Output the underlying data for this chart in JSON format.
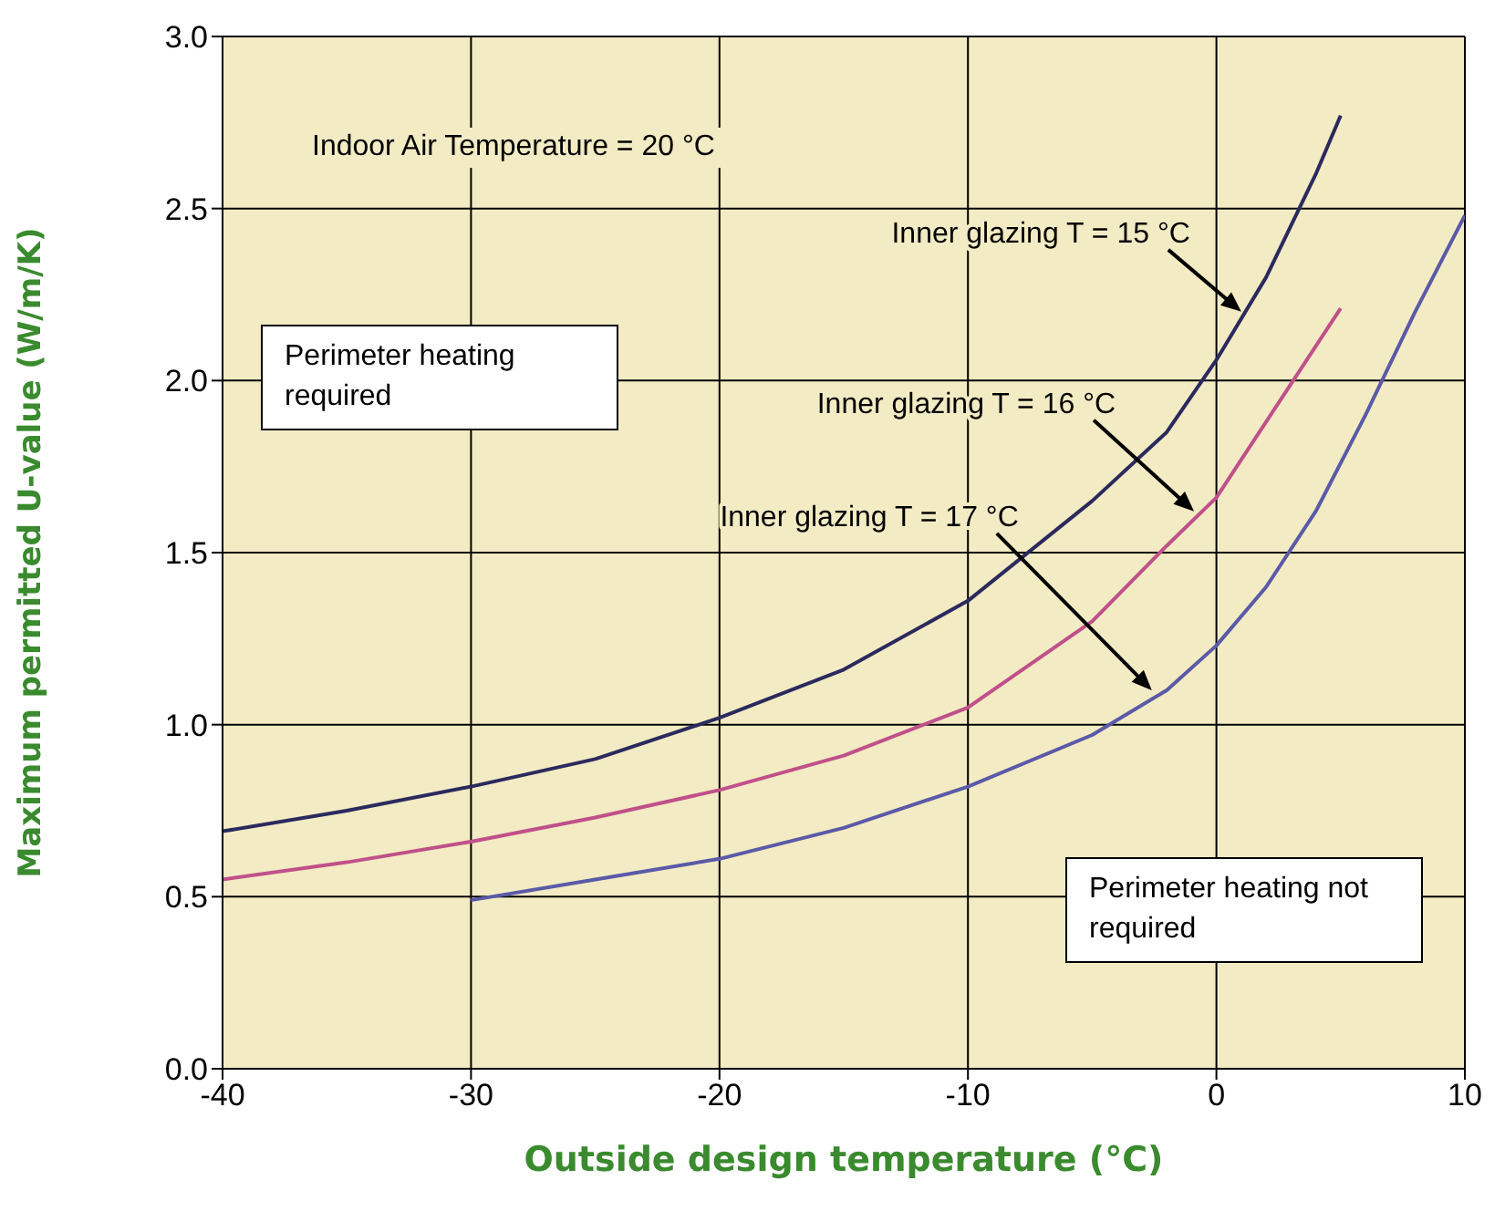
{
  "chart_data": {
    "type": "line",
    "xlabel": "Outside design temperature (°C)",
    "ylabel": "Maximum permitted U-value (W/m/K)",
    "xlim": [
      -40,
      10
    ],
    "xticks": [
      -40,
      -30,
      -20,
      -10,
      0,
      10
    ],
    "ylim": [
      0,
      3
    ],
    "yticks": [
      {
        "value": 0,
        "label": "0.0"
      },
      {
        "value": 0.5,
        "label": "0.5"
      },
      {
        "value": 1,
        "label": "1.0"
      },
      {
        "value": 1.5,
        "label": "1.5"
      },
      {
        "value": 2,
        "label": "2.0"
      },
      {
        "value": 2.5,
        "label": "2.5"
      },
      {
        "value": 3,
        "label": "3.0"
      }
    ],
    "grid": true,
    "marker": "none",
    "line_style": "solid",
    "series": [
      {
        "color": "#2b2a5e",
        "x": [
          -40,
          -35,
          -30,
          -25,
          -20,
          -15,
          -10,
          -5,
          -2,
          0,
          2,
          4,
          5
        ],
        "values": [
          0.69,
          0.75,
          0.82,
          0.9,
          1.02,
          1.16,
          1.36,
          1.65,
          1.85,
          2.06,
          2.3,
          2.6,
          2.77
        ]
      },
      {
        "color": "#c0508a",
        "x": [
          -40,
          -35,
          -30,
          -25,
          -20,
          -15,
          -10,
          -5,
          -2,
          0,
          2,
          4,
          5
        ],
        "values": [
          0.55,
          0.6,
          0.66,
          0.73,
          0.81,
          0.91,
          1.05,
          1.3,
          1.52,
          1.66,
          1.88,
          2.1,
          2.21
        ]
      },
      {
        "color": "#5a5aa8",
        "x": [
          -30,
          -25,
          -20,
          -15,
          -10,
          -5,
          -2,
          0,
          2,
          4,
          6,
          8,
          10
        ],
        "values": [
          0.49,
          0.55,
          0.61,
          0.7,
          0.82,
          0.97,
          1.1,
          1.23,
          1.4,
          1.62,
          1.9,
          2.2,
          2.48
        ]
      }
    ],
    "annotations": [
      "Indoor Air Temperature = 20 °C",
      "Perimeter heating required",
      "Perimeter heating not required",
      {
        "text": "Inner glazing T = 15 °C",
        "x": 1,
        "y": 2.2
      },
      {
        "text": "Inner glazing T = 16 °C",
        "x": -0.9,
        "y": 1.62
      },
      {
        "text": "Inner glazing T = 17 °C",
        "x": -2.6,
        "y": 1.1
      }
    ]
  }
}
